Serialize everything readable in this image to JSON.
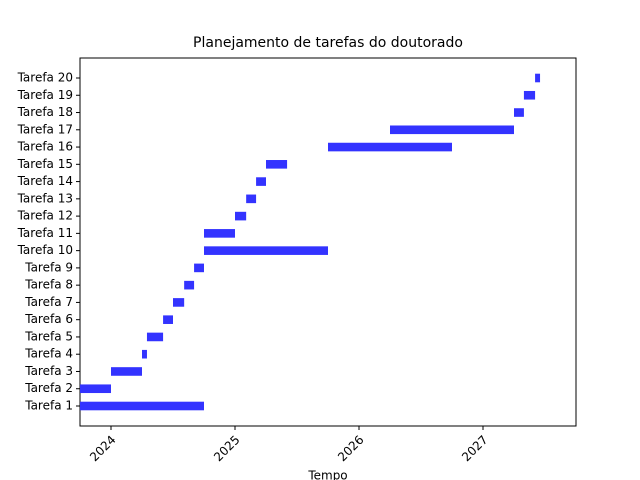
{
  "chart_data": {
    "type": "gantt",
    "title": "Planejamento de tarefas do doutorado",
    "x_label": "Tempo",
    "categories": [
      "Tarefa 1",
      "Tarefa 2",
      "Tarefa 3",
      "Tarefa 4",
      "Tarefa 5",
      "Tarefa 6",
      "Tarefa 7",
      "Tarefa 8",
      "Tarefa 9",
      "Tarefa 10",
      "Tarefa 11",
      "Tarefa 12",
      "Tarefa 13",
      "Tarefa 14",
      "Tarefa 15",
      "Tarefa 16",
      "Tarefa 17",
      "Tarefa 18",
      "Tarefa 19",
      "Tarefa 20"
    ],
    "start": [
      2023.75,
      2023.75,
      2024.0,
      2024.25,
      2024.29,
      2024.42,
      2024.5,
      2024.59,
      2024.67,
      2024.75,
      2024.75,
      2025.0,
      2025.09,
      2025.17,
      2025.25,
      2025.75,
      2026.25,
      2027.25,
      2027.33,
      2027.42
    ],
    "end": [
      2024.75,
      2024.0,
      2024.25,
      2024.29,
      2024.42,
      2024.5,
      2024.59,
      2024.67,
      2024.75,
      2025.75,
      2025.0,
      2025.09,
      2025.17,
      2025.25,
      2025.42,
      2026.75,
      2027.25,
      2027.33,
      2027.42,
      2027.46
    ],
    "color": "#3333ff",
    "xlim": [
      2023.75,
      2027.75
    ],
    "xticks": [
      2024,
      2025,
      2026,
      2027
    ]
  }
}
